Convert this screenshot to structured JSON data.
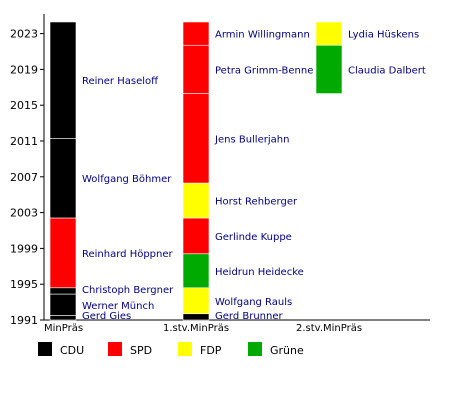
{
  "chart_data": {
    "type": "timeline",
    "title": "",
    "xlabel": "",
    "ylabel": "",
    "ylim": [
      1991,
      2025
    ],
    "yticks": [
      1991,
      1995,
      1999,
      2003,
      2007,
      2011,
      2015,
      2019,
      2023
    ],
    "categories": [
      "MinPräs",
      "1.stv.MinPräs",
      "2.stv.MinPräs"
    ],
    "legend": [
      {
        "party": "CDU",
        "color": "#000000"
      },
      {
        "party": "SPD",
        "color": "#ff0000"
      },
      {
        "party": "FDP",
        "color": "#ffff00"
      },
      {
        "party": "Grüne",
        "color": "#00aa00"
      }
    ],
    "legend_position": "bottom",
    "terms": [
      {
        "category": "MinPräs",
        "name": "Gerd Gies",
        "party": "CDU",
        "start": 1991.0,
        "end": 1991.5
      },
      {
        "category": "MinPräs",
        "name": "Werner Münch",
        "party": "CDU",
        "start": 1991.5,
        "end": 1993.9
      },
      {
        "category": "MinPräs",
        "name": "Christoph Bergner",
        "party": "CDU",
        "start": 1993.9,
        "end": 1994.6
      },
      {
        "category": "MinPräs",
        "name": "Reinhard Höppner",
        "party": "SPD",
        "start": 1994.6,
        "end": 2002.4
      },
      {
        "category": "MinPräs",
        "name": "Wolfgang Böhmer",
        "party": "CDU",
        "start": 2002.4,
        "end": 2011.3
      },
      {
        "category": "MinPräs",
        "name": "Reiner Haseloff",
        "party": "CDU",
        "start": 2011.3,
        "end": 2024.3
      },
      {
        "category": "1.stv.MinPräs",
        "name": "Gerd Brunner",
        "party": "CDU",
        "start": 1991.0,
        "end": 1991.7
      },
      {
        "category": "1.stv.MinPräs",
        "name": "Wolfgang Rauls",
        "party": "FDP",
        "start": 1991.7,
        "end": 1994.6
      },
      {
        "category": "1.stv.MinPräs",
        "name": "Heidrun Heidecke",
        "party": "Grüne",
        "start": 1994.6,
        "end": 1998.4
      },
      {
        "category": "1.stv.MinPräs",
        "name": "Gerlinde Kuppe",
        "party": "SPD",
        "start": 1998.4,
        "end": 2002.4
      },
      {
        "category": "1.stv.MinPräs",
        "name": "Horst Rehberger",
        "party": "FDP",
        "start": 2002.4,
        "end": 2006.3
      },
      {
        "category": "1.stv.MinPräs",
        "name": "Jens Bullerjahn",
        "party": "SPD",
        "start": 2006.3,
        "end": 2016.3
      },
      {
        "category": "1.stv.MinPräs",
        "name": "Petra Grimm-Benne",
        "party": "SPD",
        "start": 2016.3,
        "end": 2021.7
      },
      {
        "category": "1.stv.MinPräs",
        "name": "Armin Willingmann",
        "party": "SPD",
        "start": 2021.7,
        "end": 2024.3
      },
      {
        "category": "2.stv.MinPräs",
        "name": "Claudia Dalbert",
        "party": "Grüne",
        "start": 2016.3,
        "end": 2021.7
      },
      {
        "category": "2.stv.MinPräs",
        "name": "Lydia Hüskens",
        "party": "FDP",
        "start": 2021.7,
        "end": 2024.3
      }
    ]
  }
}
